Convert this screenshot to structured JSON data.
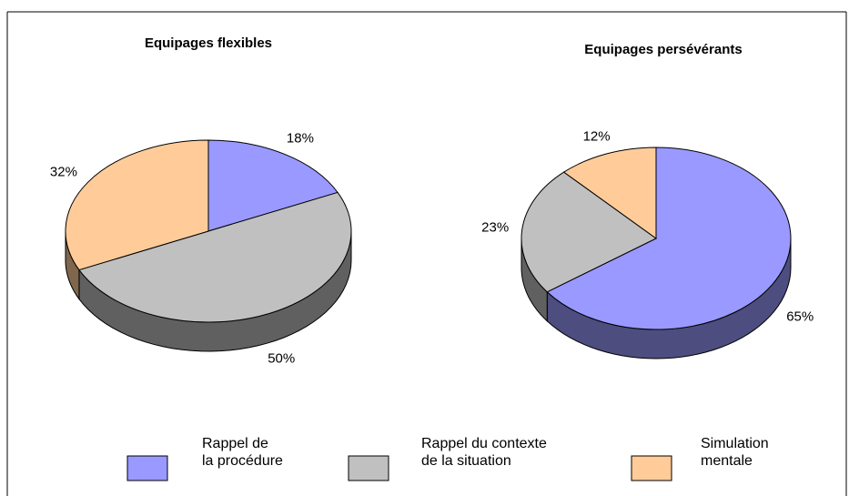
{
  "chart_data": [
    {
      "type": "pie",
      "title": "Equipages flexibles",
      "categories": [
        "Rappel de\nla procédure",
        "Rappel du contexte\nde la situation",
        "Simulation\nmentale"
      ],
      "values": [
        18,
        50,
        32
      ],
      "value_labels": [
        "18%",
        "50%",
        "32%"
      ],
      "colors": [
        "#9999ff",
        "#c0c0c0",
        "#ffcc99"
      ]
    },
    {
      "type": "pie",
      "title": "Equipages persévérants",
      "categories": [
        "Rappel de\nla procédure",
        "Rappel du contexte\nde la situation",
        "Simulation\nmentale"
      ],
      "values": [
        65,
        23,
        12
      ],
      "value_labels": [
        "65%",
        "23%",
        "12%"
      ],
      "colors": [
        "#9999ff",
        "#c0c0c0",
        "#ffcc99"
      ]
    }
  ]
}
